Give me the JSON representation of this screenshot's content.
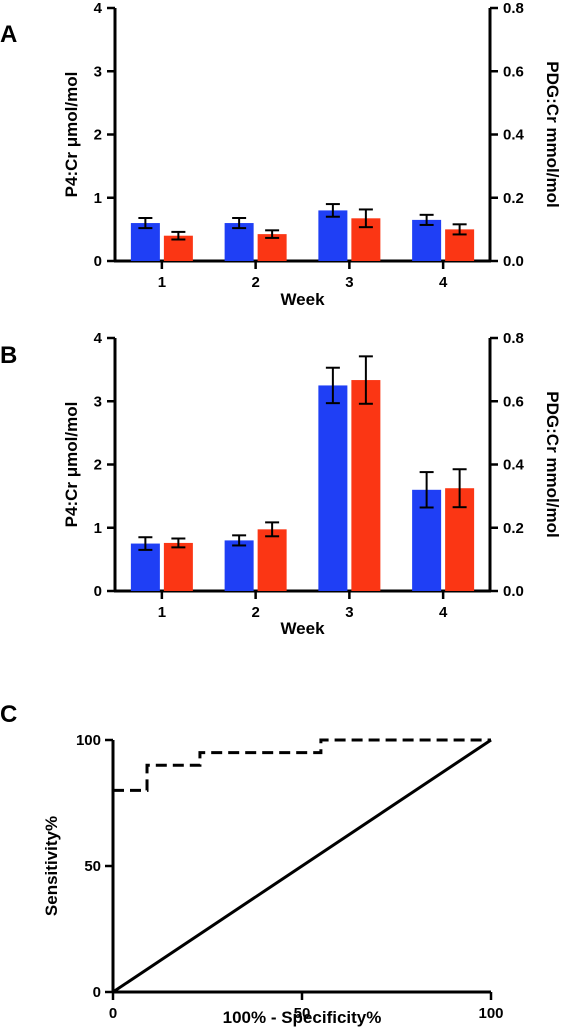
{
  "colors": {
    "blue": "#1f3ff5",
    "red": "#fb3614",
    "axis": "#000000"
  },
  "chart_data": [
    {
      "panel": "A",
      "type": "bar",
      "xlabel": "Week",
      "ylabel": "P4:Cr μmol/mol",
      "y2label": "PDG:Cr mmol/mol",
      "categories": [
        "1",
        "2",
        "3",
        "4"
      ],
      "ylim": [
        0,
        4
      ],
      "yticks": [
        "0",
        "1",
        "2",
        "3",
        "4"
      ],
      "y2lim": [
        0,
        0.8
      ],
      "y2ticks": [
        "0.0",
        "0.2",
        "0.4",
        "0.6",
        "0.8"
      ],
      "series": [
        {
          "axis": "left",
          "color": "#1f3ff5",
          "values": [
            0.6,
            0.6,
            0.8,
            0.65
          ],
          "err": [
            0.08,
            0.08,
            0.1,
            0.08
          ]
        },
        {
          "axis": "right",
          "color": "#fb3614",
          "values": [
            0.08,
            0.085,
            0.135,
            0.1
          ],
          "err": [
            0.012,
            0.012,
            0.028,
            0.016
          ]
        }
      ]
    },
    {
      "panel": "B",
      "type": "bar",
      "xlabel": "Week",
      "ylabel": "P4:Cr μmol/mol",
      "y2label": "PDG:Cr mmol/mol",
      "categories": [
        "1",
        "2",
        "3",
        "4"
      ],
      "ylim": [
        0,
        4
      ],
      "yticks": [
        "0",
        "1",
        "2",
        "3",
        "4"
      ],
      "y2lim": [
        0,
        0.8
      ],
      "y2ticks": [
        "0.0",
        "0.2",
        "0.4",
        "0.6",
        "0.8"
      ],
      "series": [
        {
          "axis": "left",
          "color": "#1f3ff5",
          "values": [
            0.75,
            0.8,
            3.25,
            1.6
          ],
          "err": [
            0.1,
            0.08,
            0.28,
            0.28
          ]
        },
        {
          "axis": "right",
          "color": "#fb3614",
          "values": [
            0.152,
            0.195,
            0.667,
            0.325
          ],
          "err": [
            0.014,
            0.022,
            0.075,
            0.06
          ]
        }
      ]
    },
    {
      "panel": "C",
      "type": "line",
      "xlabel": "100% - Specificity%",
      "ylabel": "Sensitivity%",
      "xlim": [
        0,
        100
      ],
      "ylim": [
        0,
        100
      ],
      "xticks": [
        "0",
        "50",
        "100"
      ],
      "yticks": [
        "0",
        "50",
        "100"
      ],
      "series": [
        {
          "style": "dashed",
          "x": [
            0,
            9,
            9,
            23,
            23,
            55,
            55,
            100
          ],
          "y": [
            80,
            80,
            90,
            90,
            95,
            95,
            100,
            100
          ]
        },
        {
          "style": "solid",
          "x": [
            0,
            100
          ],
          "y": [
            0,
            100
          ]
        }
      ]
    }
  ]
}
